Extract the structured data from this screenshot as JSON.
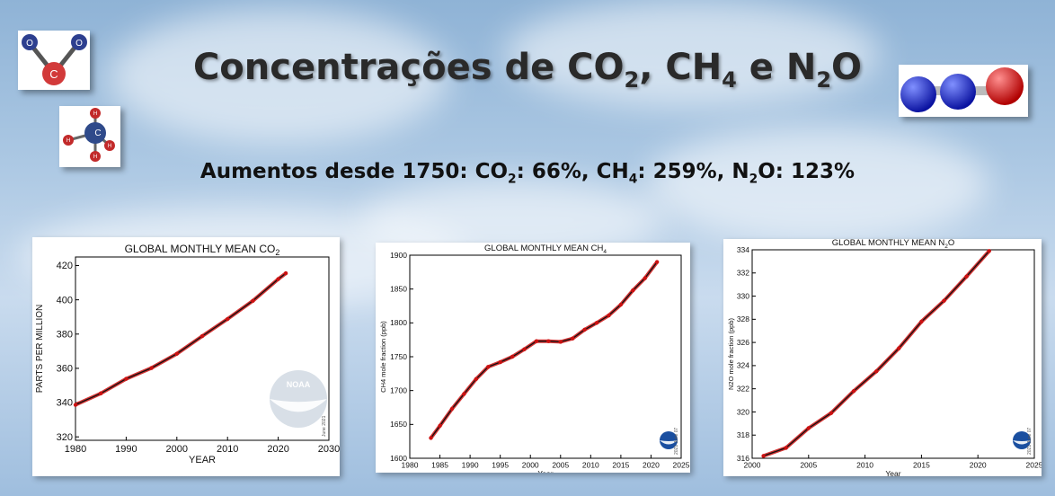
{
  "slide": {
    "title_pre": "Concentrações de CO",
    "title_s1": "2",
    "title_mid": ", CH",
    "title_s2": "4",
    "title_mid2": " e N",
    "title_s3": "2",
    "title_post": "O",
    "subtitle_a": "Aumentos desde 1750: CO",
    "subtitle_s1": "2",
    "subtitle_b": ": 66%, CH",
    "subtitle_s2": "4",
    "subtitle_c": ": 259%, N",
    "subtitle_s3": "2",
    "subtitle_d": "O: 123%",
    "co2_molecule": {
      "atoms": [
        "O",
        "O",
        "C"
      ],
      "colors": {
        "O": "#2d3f8f",
        "C": "#d23a3a"
      }
    },
    "ch4_molecule": {
      "atoms": [
        "H",
        "H",
        "H",
        "H",
        "C"
      ],
      "colors": {
        "H": "#c22a2a",
        "C": "#2f4a8a"
      }
    },
    "n2o_molecule": {
      "colors": {
        "N": "#1020c0",
        "O": "#d01010"
      }
    }
  },
  "chart_data": [
    {
      "type": "line",
      "title": "GLOBAL MONTHLY MEAN CO",
      "title_sub": "2",
      "xlabel": "YEAR",
      "ylabel": "PARTS PER MILLION",
      "xlim": [
        1980,
        2030
      ],
      "ylim": [
        318,
        425
      ],
      "xticks": [
        1980,
        1990,
        2000,
        2010,
        2020,
        2030
      ],
      "yticks": [
        320,
        340,
        360,
        380,
        400,
        420
      ],
      "series": [
        {
          "x": [
            1980,
            1985,
            1990,
            1995,
            2000,
            2005,
            2010,
            2015,
            2020,
            2021.5
          ],
          "y": [
            338.7,
            345.4,
            353.9,
            360.2,
            368.5,
            378.8,
            388.8,
            399.4,
            412.1,
            415.5
          ]
        }
      ],
      "series_color": "#cc1111",
      "logo": "noaa-logo",
      "note": "June 2021"
    },
    {
      "type": "line",
      "title": "GLOBAL MONTHLY MEAN CH",
      "title_sub": "4",
      "xlabel": "Year",
      "ylabel": "CH4 mole fraction (ppb)",
      "xlim": [
        1980,
        2025
      ],
      "ylim": [
        1600,
        1900
      ],
      "xticks": [
        1980,
        1985,
        1990,
        1995,
        2000,
        2005,
        2010,
        2015,
        2020,
        2025
      ],
      "yticks": [
        1600,
        1650,
        1700,
        1750,
        1800,
        1850,
        1900
      ],
      "series": [
        {
          "x": [
            1983.5,
            1985,
            1987,
            1989,
            1991,
            1993,
            1995,
            1997,
            1999,
            2001,
            2003,
            2005,
            2007,
            2009,
            2011,
            2013,
            2015,
            2017,
            2019,
            2021
          ],
          "y": [
            1630,
            1648,
            1673,
            1695,
            1717,
            1735,
            1742,
            1750,
            1761,
            1773,
            1773,
            1772,
            1777,
            1790,
            1800,
            1811,
            1827,
            1848,
            1866,
            1890
          ]
        }
      ],
      "series_color": "#cc1111",
      "logo": "noaa-logo",
      "note": "2021 June 07"
    },
    {
      "type": "line",
      "title": "GLOBAL MONTHLY MEAN N",
      "title_sub": "2",
      "title_post": "O",
      "xlabel": "Year",
      "ylabel": "N2O mole fraction (ppb)",
      "xlim": [
        2000,
        2025
      ],
      "ylim": [
        316,
        334
      ],
      "xticks": [
        2000,
        2005,
        2010,
        2015,
        2020,
        2025
      ],
      "yticks": [
        316,
        318,
        320,
        322,
        324,
        326,
        328,
        330,
        332,
        334
      ],
      "series": [
        {
          "x": [
            2001,
            2003,
            2005,
            2007,
            2009,
            2011,
            2013,
            2015,
            2017,
            2019,
            2021
          ],
          "y": [
            316.2,
            316.9,
            318.6,
            319.9,
            321.8,
            323.5,
            325.5,
            327.8,
            329.6,
            331.7,
            333.9
          ]
        }
      ],
      "series_color": "#cc1111",
      "logo": "noaa-logo",
      "note": "2021 June 07"
    }
  ]
}
